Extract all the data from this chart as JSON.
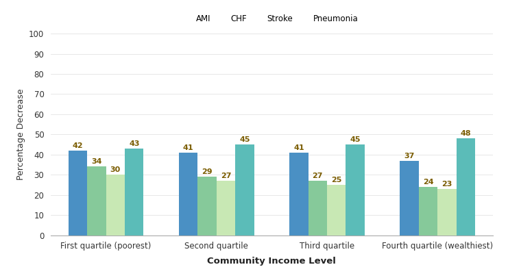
{
  "categories": [
    "First quartile (poorest)",
    "Second quartile",
    "Third quartile",
    "Fourth quartile (wealthiest)"
  ],
  "series": {
    "AMI": [
      42,
      41,
      41,
      37
    ],
    "CHF": [
      34,
      29,
      27,
      24
    ],
    "Stroke": [
      30,
      27,
      25,
      23
    ],
    "Pneumonia": [
      43,
      45,
      45,
      48
    ]
  },
  "colors": {
    "AMI": "#4a90c4",
    "CHF": "#86c99a",
    "Stroke": "#c8e8b4",
    "Pneumonia": "#5bbcb8"
  },
  "ylabel": "Percentage Decrease",
  "xlabel": "Community Income Level",
  "ylim": [
    0,
    100
  ],
  "yticks": [
    0,
    10,
    20,
    30,
    40,
    50,
    60,
    70,
    80,
    90,
    100
  ],
  "legend_labels": [
    "AMI",
    "CHF",
    "Stroke",
    "Pneumonia"
  ],
  "bar_width": 0.17,
  "label_fontsize": 8,
  "axis_label_fontsize": 9.5,
  "ylabel_fontsize": 9,
  "tick_fontsize": 8.5,
  "legend_fontsize": 8.5,
  "value_label_color": "#7a5c00"
}
